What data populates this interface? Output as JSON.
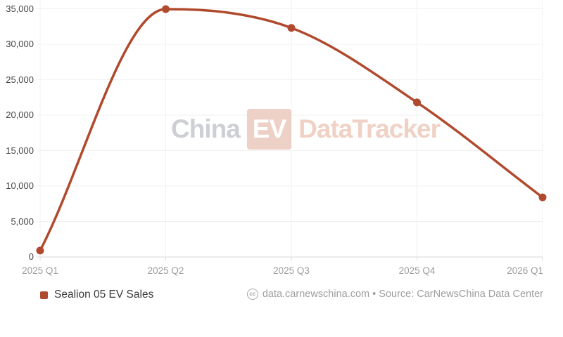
{
  "watermark": {
    "part1": "China",
    "badge": "EV",
    "part2": "DataTracker"
  },
  "legend": {
    "label": "Sealion 05 EV Sales"
  },
  "footer": {
    "cc": "cc",
    "text": "data.carnewschina.com • Source: CarNewsChina Data Center"
  },
  "colors": {
    "line": "#b04a2e",
    "grid": "#f1f1f1",
    "baseline": "#d8d8d8",
    "tick": "#dcdcdc",
    "y_label": "#454545",
    "x_label": "#9c9c9c",
    "watermark_gray": "#cdcfd4",
    "watermark_salmon": "#efd1c5",
    "watermark_badge_bg": "#eed1c6",
    "watermark_badge_text": "#ffffff"
  },
  "chart_data": {
    "type": "line",
    "title": "",
    "xlabel": "",
    "ylabel": "",
    "categories": [
      "2025 Q1",
      "2025 Q2",
      "2025 Q3",
      "2025 Q4",
      "2026 Q1"
    ],
    "series": [
      {
        "name": "Sealion 05 EV Sales",
        "values": [
          900,
          34950,
          32300,
          21800,
          8400
        ]
      }
    ],
    "ylim": [
      0,
      35000
    ],
    "y_ticks": [
      0,
      5000,
      10000,
      15000,
      20000,
      25000,
      30000,
      35000
    ],
    "y_tick_labels": [
      "0",
      "5,000",
      "10,000",
      "15,000",
      "20,000",
      "25,000",
      "30,000",
      "35,000"
    ],
    "grid": true,
    "smooth": true,
    "legend_position": "bottom-left"
  }
}
